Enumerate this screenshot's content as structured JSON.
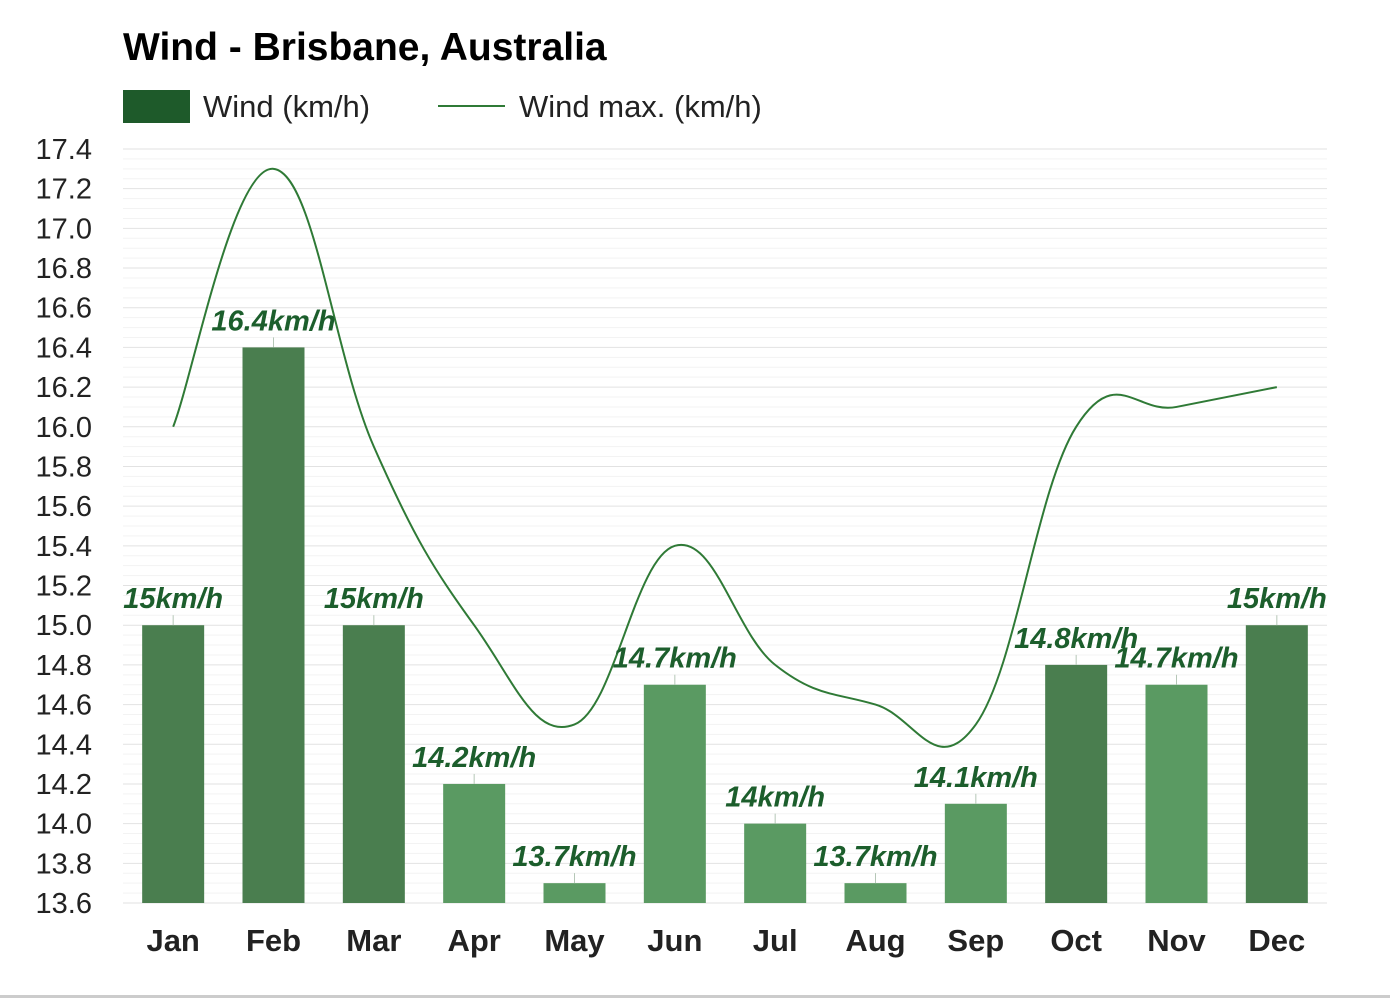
{
  "chart_data": {
    "type": "bar",
    "title": "Wind - Brisbane, Australia",
    "categories": [
      "Jan",
      "Feb",
      "Mar",
      "Apr",
      "May",
      "Jun",
      "Jul",
      "Aug",
      "Sep",
      "Oct",
      "Nov",
      "Dec"
    ],
    "series": [
      {
        "name": "Wind (km/h)",
        "type": "bar",
        "values": [
          15,
          16.4,
          15,
          14.2,
          13.7,
          14.7,
          14,
          13.7,
          14.1,
          14.8,
          14.7,
          15
        ],
        "data_labels": [
          "15km/h",
          "16.4km/h",
          "15km/h",
          "14.2km/h",
          "13.7km/h",
          "14.7km/h",
          "14km/h",
          "13.7km/h",
          "14.1km/h",
          "14.8km/h",
          "14.7km/h",
          "15km/h"
        ],
        "colors": [
          "#4a7e4f",
          "#4a7e4f",
          "#4a7e4f",
          "#5a9a62",
          "#5a9a62",
          "#5a9a62",
          "#5a9a62",
          "#5a9a62",
          "#5a9a62",
          "#4a7e4f",
          "#5a9a62",
          "#4a7e4f"
        ]
      },
      {
        "name": "Wind max. (km/h)",
        "type": "line",
        "values": [
          16.0,
          17.3,
          15.9,
          15.0,
          14.5,
          15.4,
          14.8,
          14.6,
          14.5,
          16.0,
          16.1,
          16.2
        ],
        "color": "#2f7a36"
      }
    ],
    "y_ticks": [
      "13.6",
      "13.8",
      "14.0",
      "14.2",
      "14.4",
      "14.6",
      "14.8",
      "15.0",
      "15.2",
      "15.4",
      "15.6",
      "15.8",
      "16.0",
      "16.2",
      "16.4",
      "16.6",
      "16.8",
      "17.0",
      "17.2",
      "17.4"
    ],
    "ylim": [
      13.6,
      17.4
    ],
    "xlabel": "",
    "ylabel": "",
    "grid": true,
    "legend": "top-left",
    "legend_swatch_color": "#1e5a2a",
    "grid_color": "#e6e6e6",
    "label_color": "#1c5e2c"
  }
}
